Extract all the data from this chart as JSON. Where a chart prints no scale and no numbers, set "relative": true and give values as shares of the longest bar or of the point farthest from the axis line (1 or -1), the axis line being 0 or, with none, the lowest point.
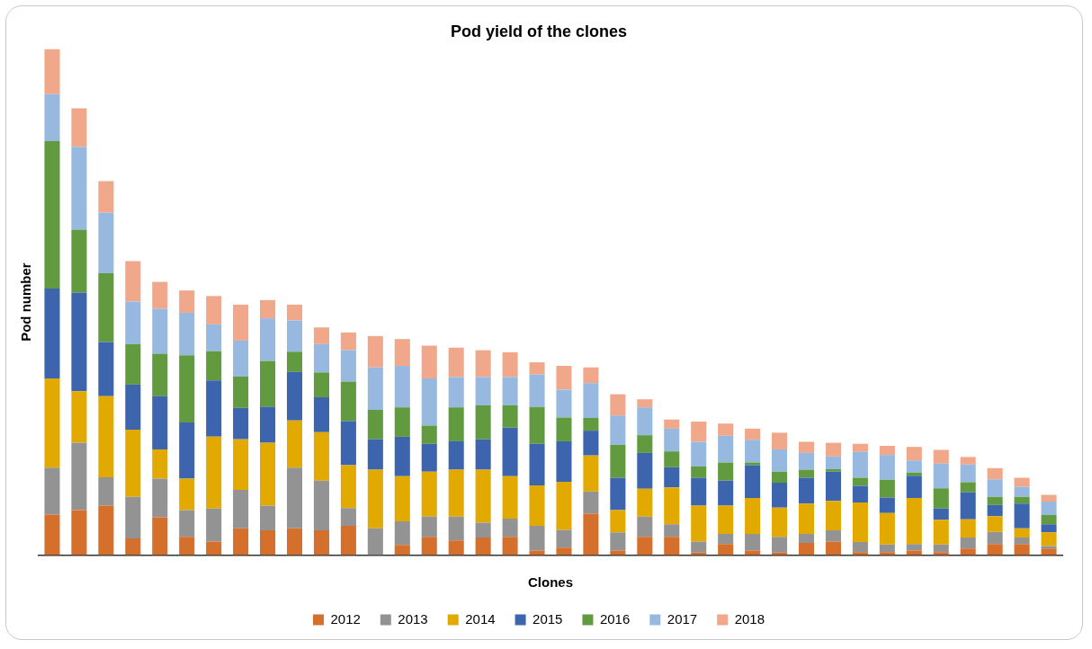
{
  "chart_data": {
    "type": "bar",
    "title": "Pod yield of the clones",
    "xlabel": "Clones",
    "ylabel": "Pod number",
    "relative": true,
    "stacked": true,
    "legend": "bottom",
    "categories": [
      null,
      null,
      null,
      null,
      null,
      null,
      null,
      null,
      null,
      null,
      null,
      null,
      null,
      null,
      null,
      null,
      null,
      null,
      null,
      null,
      null,
      null,
      null,
      null,
      null,
      null,
      null,
      null,
      null,
      null,
      null,
      null,
      null,
      null,
      null,
      null,
      null,
      null
    ],
    "series": [
      {
        "name": "2012",
        "color": "#d46f2c",
        "values": [
          0.08,
          0.089,
          0.098,
          0.033,
          0.075,
          0.036,
          0.027,
          0.053,
          0.049,
          0.053,
          0.049,
          0.058,
          0,
          0.02,
          0.036,
          0.029,
          0.035,
          0.036,
          0.009,
          0.015,
          0.082,
          0.009,
          0.036,
          0.036,
          0.005,
          0.022,
          0.009,
          0.005,
          0.024,
          0.027,
          0.006,
          0.006,
          0.009,
          0.006,
          0.013,
          0.022,
          0.022,
          0.013
        ]
      },
      {
        "name": "2013",
        "color": "#939393",
        "values": [
          0.093,
          0.133,
          0.056,
          0.082,
          0.076,
          0.053,
          0.065,
          0.076,
          0.049,
          0.12,
          0.098,
          0.035,
          0.053,
          0.047,
          0.04,
          0.047,
          0.029,
          0.036,
          0.049,
          0.035,
          0.044,
          0.036,
          0.04,
          0.025,
          0.022,
          0.02,
          0.033,
          0.031,
          0.018,
          0.022,
          0.02,
          0.015,
          0.013,
          0.015,
          0.022,
          0.024,
          0.013,
          0.005
        ]
      },
      {
        "name": "2014",
        "color": "#e2aa00",
        "values": [
          0.176,
          0.102,
          0.16,
          0.133,
          0.058,
          0.062,
          0.142,
          0.1,
          0.124,
          0.093,
          0.096,
          0.085,
          0.116,
          0.089,
          0.089,
          0.093,
          0.105,
          0.084,
          0.08,
          0.095,
          0.071,
          0.044,
          0.055,
          0.073,
          0.071,
          0.056,
          0.071,
          0.058,
          0.06,
          0.058,
          0.078,
          0.062,
          0.091,
          0.049,
          0.036,
          0.031,
          0.018,
          0.027
        ]
      },
      {
        "name": "2015",
        "color": "#3d65ae",
        "values": [
          0.178,
          0.195,
          0.107,
          0.089,
          0.105,
          0.111,
          0.111,
          0.062,
          0.071,
          0.096,
          0.069,
          0.087,
          0.06,
          0.078,
          0.055,
          0.056,
          0.06,
          0.096,
          0.082,
          0.08,
          0.049,
          0.064,
          0.071,
          0.04,
          0.055,
          0.049,
          0.065,
          0.049,
          0.051,
          0.058,
          0.033,
          0.031,
          0.044,
          0.022,
          0.053,
          0.022,
          0.049,
          0.016
        ]
      },
      {
        "name": "2016",
        "color": "#629a3f",
        "values": [
          0.291,
          0.124,
          0.136,
          0.08,
          0.084,
          0.133,
          0.058,
          0.062,
          0.091,
          0.04,
          0.049,
          0.078,
          0.058,
          0.058,
          0.036,
          0.067,
          0.067,
          0.044,
          0.073,
          0.047,
          0.025,
          0.065,
          0.035,
          0.031,
          0.022,
          0.036,
          0.005,
          0.022,
          0.016,
          0.005,
          0.016,
          0.035,
          0.006,
          0.04,
          0.02,
          0.016,
          0.013,
          0.018
        ]
      },
      {
        "name": "2017",
        "color": "#97b9e0",
        "values": [
          0.093,
          0.164,
          0.12,
          0.084,
          0.089,
          0.084,
          0.053,
          0.071,
          0.084,
          0.062,
          0.056,
          0.062,
          0.084,
          0.082,
          0.093,
          0.06,
          0.056,
          0.056,
          0.064,
          0.055,
          0.069,
          0.058,
          0.055,
          0.045,
          0.049,
          0.053,
          0.045,
          0.044,
          0.033,
          0.025,
          0.051,
          0.049,
          0.024,
          0.049,
          0.035,
          0.035,
          0.02,
          0.027
        ]
      },
      {
        "name": "2018",
        "color": "#f0a78a",
        "values": [
          0.089,
          0.076,
          0.062,
          0.08,
          0.053,
          0.044,
          0.056,
          0.071,
          0.036,
          0.031,
          0.033,
          0.035,
          0.062,
          0.053,
          0.065,
          0.058,
          0.053,
          0.049,
          0.024,
          0.047,
          0.031,
          0.042,
          0.016,
          0.018,
          0.04,
          0.024,
          0.022,
          0.033,
          0.022,
          0.027,
          0.016,
          0.018,
          0.027,
          0.027,
          0.015,
          0.022,
          0.018,
          0.013
        ]
      }
    ]
  }
}
